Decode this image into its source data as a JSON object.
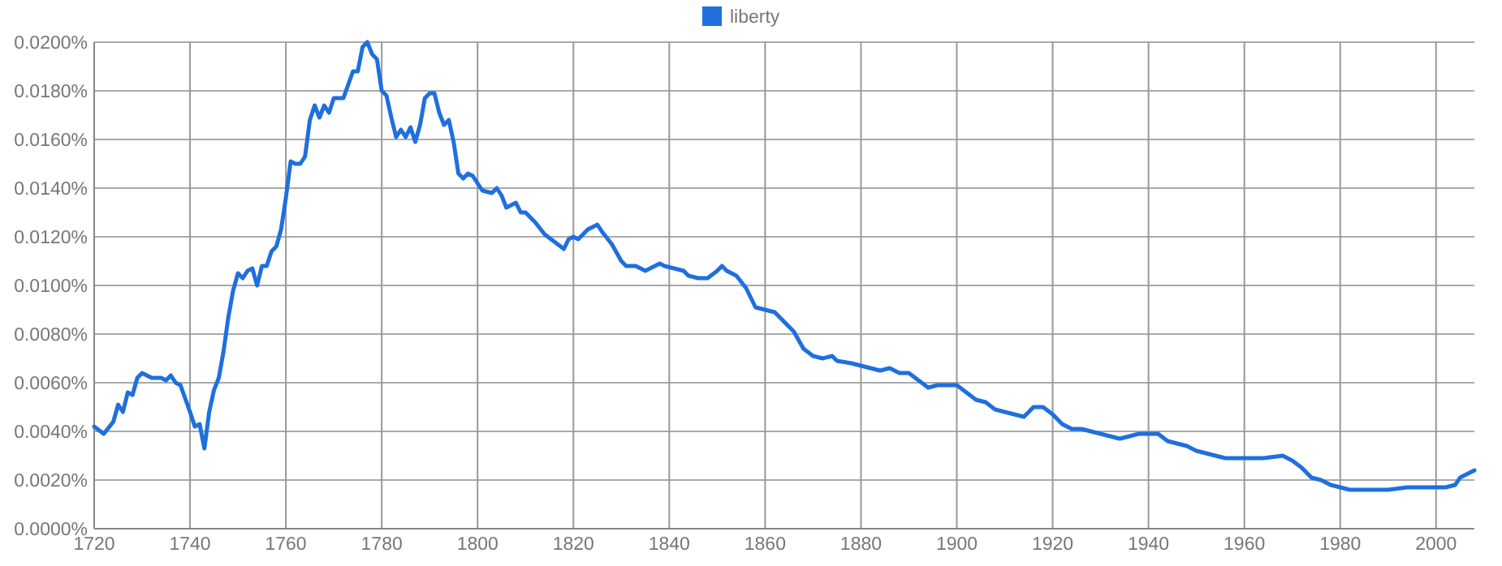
{
  "chart_data": {
    "type": "line",
    "xlim": [
      1720,
      2008
    ],
    "xticks": [
      1720,
      1740,
      1760,
      1780,
      1800,
      1820,
      1840,
      1860,
      1880,
      1900,
      1920,
      1940,
      1960,
      1980,
      2000
    ],
    "ylim": [
      0,
      0.02
    ],
    "yticks": [
      {
        "value": 0,
        "label": "0.0000%"
      },
      {
        "value": 0.002,
        "label": "0.0020%"
      },
      {
        "value": 0.004,
        "label": "0.0040%"
      },
      {
        "value": 0.006,
        "label": "0.0060%"
      },
      {
        "value": 0.008,
        "label": "0.0080%"
      },
      {
        "value": 0.01,
        "label": "0.0100%"
      },
      {
        "value": 0.012,
        "label": "0.0120%"
      },
      {
        "value": 0.014,
        "label": "0.0140%"
      },
      {
        "value": 0.016,
        "label": "0.0160%"
      },
      {
        "value": 0.018,
        "label": "0.0180%"
      },
      {
        "value": 0.02,
        "label": "0.0200%"
      }
    ],
    "grid": true,
    "legend": "top",
    "line_style": "solid",
    "marker": "none",
    "x": [
      1720,
      1722,
      1724,
      1725,
      1726,
      1727,
      1728,
      1729,
      1730,
      1732,
      1734,
      1735,
      1736,
      1737,
      1738,
      1740,
      1741,
      1742,
      1743,
      1744,
      1745,
      1746,
      1747,
      1748,
      1749,
      1750,
      1751,
      1752,
      1753,
      1754,
      1755,
      1756,
      1757,
      1758,
      1759,
      1760,
      1761,
      1762,
      1763,
      1764,
      1765,
      1766,
      1767,
      1768,
      1769,
      1770,
      1772,
      1774,
      1775,
      1776,
      1777,
      1778,
      1779,
      1780,
      1781,
      1782,
      1783,
      1784,
      1785,
      1786,
      1787,
      1788,
      1789,
      1790,
      1791,
      1792,
      1793,
      1794,
      1795,
      1796,
      1797,
      1798,
      1799,
      1800,
      1801,
      1803,
      1804,
      1805,
      1806,
      1808,
      1809,
      1810,
      1812,
      1814,
      1816,
      1818,
      1819,
      1820,
      1821,
      1823,
      1825,
      1826,
      1828,
      1830,
      1831,
      1833,
      1835,
      1836,
      1838,
      1839,
      1841,
      1843,
      1844,
      1846,
      1848,
      1850,
      1851,
      1852,
      1854,
      1856,
      1858,
      1860,
      1862,
      1864,
      1866,
      1868,
      1870,
      1872,
      1874,
      1875,
      1878,
      1880,
      1882,
      1884,
      1886,
      1888,
      1890,
      1892,
      1894,
      1896,
      1898,
      1900,
      1902,
      1904,
      1906,
      1908,
      1910,
      1912,
      1914,
      1916,
      1918,
      1920,
      1922,
      1924,
      1926,
      1928,
      1930,
      1932,
      1934,
      1936,
      1938,
      1942,
      1944,
      1946,
      1948,
      1950,
      1952,
      1954,
      1956,
      1960,
      1964,
      1968,
      1970,
      1972,
      1974,
      1976,
      1978,
      1980,
      1982,
      1986,
      1990,
      1994,
      1998,
      2002,
      2004,
      2005,
      2007,
      2008
    ],
    "series": [
      {
        "name": "liberty",
        "color": "#1f6fde",
        "values": [
          0.0042,
          0.0039,
          0.0044,
          0.0051,
          0.0048,
          0.0056,
          0.0055,
          0.0062,
          0.0064,
          0.0062,
          0.0062,
          0.0061,
          0.0063,
          0.006,
          0.0059,
          0.0048,
          0.0042,
          0.0043,
          0.0033,
          0.0048,
          0.0057,
          0.0062,
          0.0073,
          0.0087,
          0.0098,
          0.0105,
          0.0103,
          0.0106,
          0.0107,
          0.01,
          0.0108,
          0.0108,
          0.0114,
          0.0116,
          0.0123,
          0.0136,
          0.0151,
          0.015,
          0.015,
          0.0153,
          0.0168,
          0.0174,
          0.0169,
          0.0174,
          0.0171,
          0.0177,
          0.0177,
          0.0188,
          0.0188,
          0.0198,
          0.02,
          0.0195,
          0.0193,
          0.018,
          0.0178,
          0.0169,
          0.0161,
          0.0164,
          0.0161,
          0.0165,
          0.0159,
          0.0166,
          0.0177,
          0.0179,
          0.0179,
          0.0171,
          0.0166,
          0.0168,
          0.0159,
          0.0146,
          0.0144,
          0.0146,
          0.0145,
          0.0142,
          0.0139,
          0.0138,
          0.014,
          0.0137,
          0.0132,
          0.0134,
          0.013,
          0.013,
          0.0126,
          0.0121,
          0.0118,
          0.0115,
          0.0119,
          0.012,
          0.0119,
          0.0123,
          0.0125,
          0.0122,
          0.0117,
          0.011,
          0.0108,
          0.0108,
          0.0106,
          0.0107,
          0.0109,
          0.0108,
          0.0107,
          0.0106,
          0.0104,
          0.0103,
          0.0103,
          0.0106,
          0.0108,
          0.0106,
          0.0104,
          0.0099,
          0.0091,
          0.009,
          0.0089,
          0.0085,
          0.0081,
          0.0074,
          0.0071,
          0.007,
          0.0071,
          0.0069,
          0.0068,
          0.0067,
          0.0066,
          0.0065,
          0.0066,
          0.0064,
          0.0064,
          0.0061,
          0.0058,
          0.0059,
          0.0059,
          0.0059,
          0.0056,
          0.0053,
          0.0052,
          0.0049,
          0.0048,
          0.0047,
          0.0046,
          0.005,
          0.005,
          0.0047,
          0.0043,
          0.0041,
          0.0041,
          0.004,
          0.0039,
          0.0038,
          0.0037,
          0.0038,
          0.0039,
          0.0039,
          0.0036,
          0.0035,
          0.0034,
          0.0032,
          0.0031,
          0.003,
          0.0029,
          0.0029,
          0.0029,
          0.003,
          0.0028,
          0.0025,
          0.0021,
          0.002,
          0.0018,
          0.0017,
          0.0016,
          0.0016,
          0.0016,
          0.0017,
          0.0017,
          0.0017,
          0.0018,
          0.0021,
          0.0023,
          0.0024
        ]
      }
    ]
  }
}
